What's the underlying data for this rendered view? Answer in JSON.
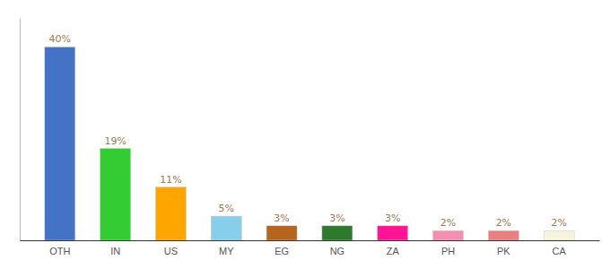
{
  "chart_data": {
    "type": "bar",
    "categories": [
      "OTH",
      "IN",
      "US",
      "MY",
      "EG",
      "NG",
      "ZA",
      "PH",
      "PK",
      "CA"
    ],
    "values": [
      40,
      19,
      11,
      5,
      3,
      3,
      3,
      2,
      2,
      2
    ],
    "value_labels": [
      "40%",
      "19%",
      "11%",
      "5%",
      "3%",
      "3%",
      "3%",
      "2%",
      "2%",
      "2%"
    ],
    "colors": [
      "#4472c4",
      "#33cc33",
      "#ffa500",
      "#87ceeb",
      "#b5651d",
      "#2d7a2d",
      "#ff1493",
      "#f48fb1",
      "#e88080",
      "#f5f5dc"
    ],
    "ylim": [
      0,
      46
    ],
    "data_labels": true,
    "tick_labels": "x",
    "grid": false
  }
}
